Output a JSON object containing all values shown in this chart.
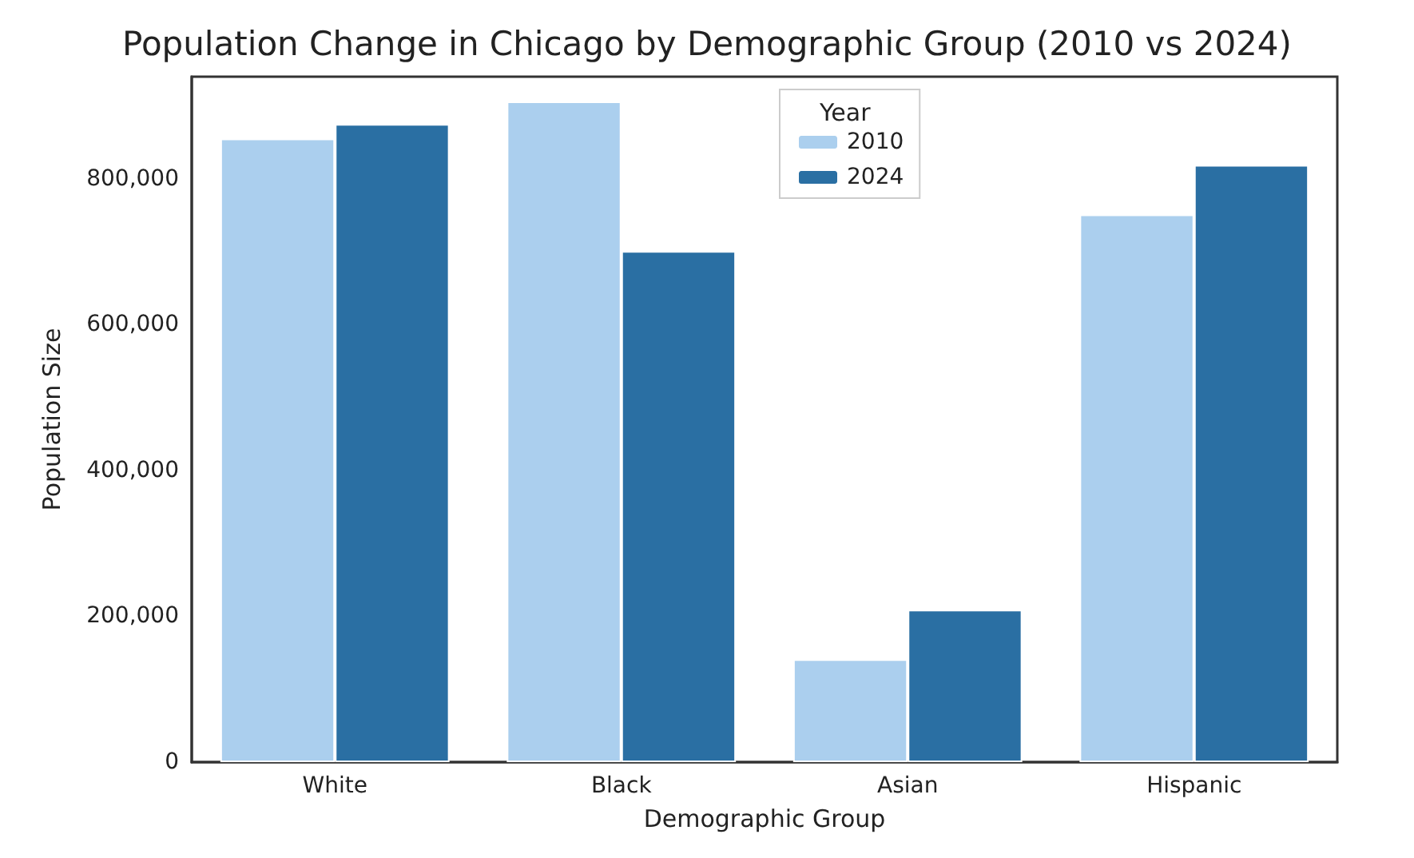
{
  "chart_data": {
    "type": "bar",
    "title": "Population Change in Chicago by Demographic Group (2010 vs 2024)",
    "xlabel": "Demographic Group",
    "ylabel": "Population Size",
    "legend_title": "Year",
    "categories": [
      "White",
      "Black",
      "Asian",
      "Hispanic"
    ],
    "series": [
      {
        "name": "2010",
        "color": "#abcfee",
        "values": [
          855000,
          906000,
          141000,
          751000
        ]
      },
      {
        "name": "2024",
        "color": "#2a6fa3",
        "values": [
          875000,
          701000,
          209000,
          819000
        ]
      }
    ],
    "ylim": [
      0,
      940000
    ],
    "yticks": [
      {
        "value": 0,
        "label": "0"
      },
      {
        "value": 200000,
        "label": "200,000"
      },
      {
        "value": 400000,
        "label": "400,000"
      },
      {
        "value": 600000,
        "label": "600,000"
      },
      {
        "value": 800000,
        "label": "800,000"
      }
    ],
    "grid": false,
    "legend": "top"
  }
}
